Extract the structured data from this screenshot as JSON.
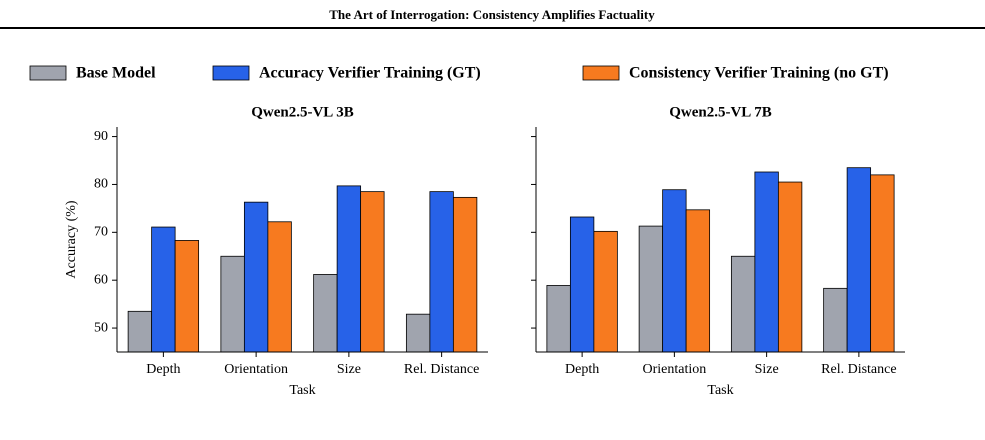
{
  "header": {
    "title": "The Art of Interrogation: Consistency Amplifies Factuality"
  },
  "legend": [
    {
      "name": "Base Model",
      "color": "#a0a4ae"
    },
    {
      "name": "Accuracy Verifier Training (GT)",
      "color": "#2762e8"
    },
    {
      "name": "Consistency Verifier Training (no GT)",
      "color": "#f77a1f"
    }
  ],
  "chart_data": [
    {
      "type": "bar",
      "title": "Qwen2.5-VL 3B",
      "x_label": "Task",
      "y_label": "Accuracy (%)",
      "categories": [
        "Depth",
        "Orientation",
        "Size",
        "Rel. Distance"
      ],
      "series": [
        {
          "values": [
            53.5,
            65.0,
            61.2,
            52.9
          ]
        },
        {
          "values": [
            71.1,
            76.3,
            79.7,
            78.5
          ]
        },
        {
          "values": [
            68.3,
            72.2,
            78.5,
            77.3
          ]
        }
      ],
      "ylim": [
        45,
        92
      ],
      "yticks": [
        50,
        60,
        70,
        80,
        90
      ]
    },
    {
      "type": "bar",
      "title": "Qwen2.5-VL 7B",
      "x_label": "Task",
      "categories": [
        "Depth",
        "Orientation",
        "Size",
        "Rel. Distance"
      ],
      "series": [
        {
          "values": [
            58.9,
            71.3,
            65.0,
            58.3
          ]
        },
        {
          "values": [
            73.2,
            78.9,
            82.6,
            83.5
          ]
        },
        {
          "values": [
            70.2,
            74.7,
            80.5,
            82.0
          ]
        }
      ],
      "ylim": [
        45,
        92
      ],
      "yticks": [
        50,
        60,
        70,
        80,
        90
      ]
    }
  ]
}
